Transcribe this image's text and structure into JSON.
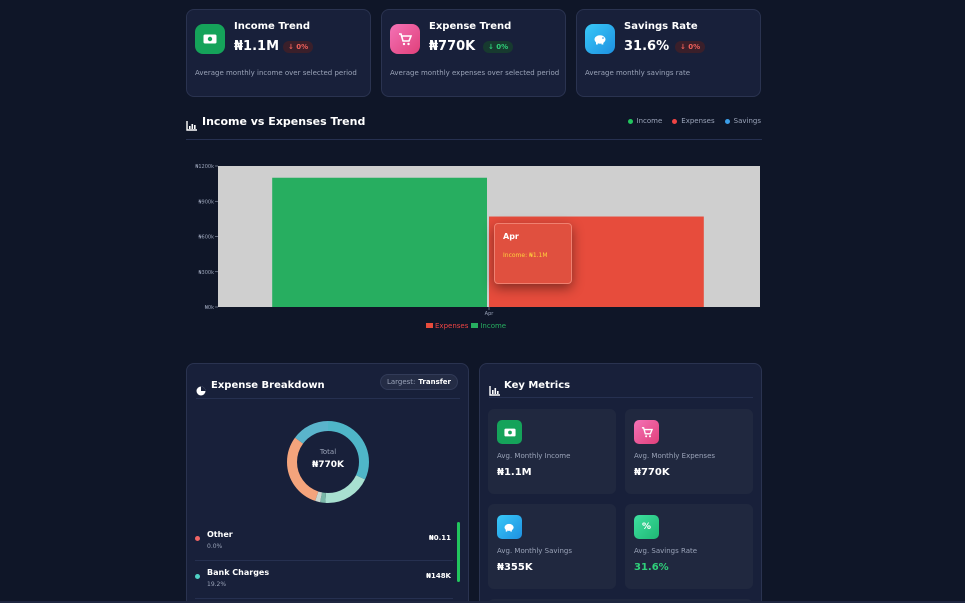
{
  "stats": [
    {
      "title": "Income Trend",
      "value": "₦1.1M",
      "badge": "↓ 0%",
      "description": "Average monthly income over selected period",
      "icon": "cash-icon",
      "color": "#15a35a"
    },
    {
      "title": "Expense Trend",
      "value": "₦770K",
      "badge": "↓ 0%",
      "description": "Average monthly expenses over selected period",
      "icon": "cart-icon",
      "color": "#f0609a"
    },
    {
      "title": "Savings Rate",
      "value": "31.6%",
      "badge": "↓ 0%",
      "description": "Average monthly savings rate",
      "icon": "piggy-bank-icon",
      "color": "#2fb8f0"
    }
  ],
  "trend": {
    "title": "Income vs Expenses Trend",
    "legend": [
      "Income",
      "Expenses",
      "Savings"
    ],
    "legend_colors": [
      "#22c55e",
      "#ef4444",
      "#3b9ee8"
    ]
  },
  "chart_data": {
    "type": "bar",
    "categories": [
      "Apr"
    ],
    "series": [
      {
        "name": "Income",
        "values": [
          1100000
        ],
        "color": "#27ae60"
      },
      {
        "name": "Expenses",
        "values": [
          770000
        ],
        "color": "#e74c3c"
      }
    ],
    "y_ticks": [
      "₦0k",
      "₦300k",
      "₦600k",
      "₦900k",
      "₦1200k"
    ],
    "ylim": [
      0,
      1200000
    ],
    "legend": [
      "Expenses",
      "Income"
    ],
    "tooltip": {
      "title": "Apr",
      "line": "Income: ₦1.1M"
    }
  },
  "breakdown": {
    "title": "Expense Breakdown",
    "largest_label": "Largest:",
    "largest_value": "Transfer",
    "total_label": "Total",
    "total_value": "₦770K",
    "items": [
      {
        "name": "Other",
        "pct": "0.0%",
        "amount": "₦0.11",
        "color": "#f06565"
      },
      {
        "name": "Bank Charges",
        "pct": "19.2%",
        "amount": "₦148K",
        "color": "#4fd1c5"
      }
    ],
    "donut_segments": [
      {
        "value": 0.32,
        "color": "#4fb6c8"
      },
      {
        "value": 0.19,
        "color": "#a8e0d0"
      },
      {
        "value": 0.02,
        "color": "#7ab8a8"
      },
      {
        "value": 0.02,
        "color": "#c8d8d0"
      },
      {
        "value": 0.3,
        "color": "#f4a47c"
      },
      {
        "value": 0.15,
        "color": "#5ab4cc"
      }
    ]
  },
  "metrics": {
    "title": "Key Metrics",
    "items": [
      {
        "label": "Avg. Monthly Income",
        "value": "₦1.1M",
        "icon": "cash-icon",
        "color": "#15a35a",
        "value_color": "#ffffff"
      },
      {
        "label": "Avg. Monthly Expenses",
        "value": "₦770K",
        "icon": "cart-icon",
        "color": "#f0609a",
        "value_color": "#ffffff"
      },
      {
        "label": "Avg. Monthly Savings",
        "value": "₦355K",
        "icon": "piggy-bank-icon",
        "color": "#2fb8f0",
        "value_color": "#ffffff"
      },
      {
        "label": "Avg. Savings Rate",
        "value": "31.6%",
        "icon": "percent-icon",
        "color": "#2ed08a",
        "value_color": "#2fd07a"
      }
    ]
  }
}
